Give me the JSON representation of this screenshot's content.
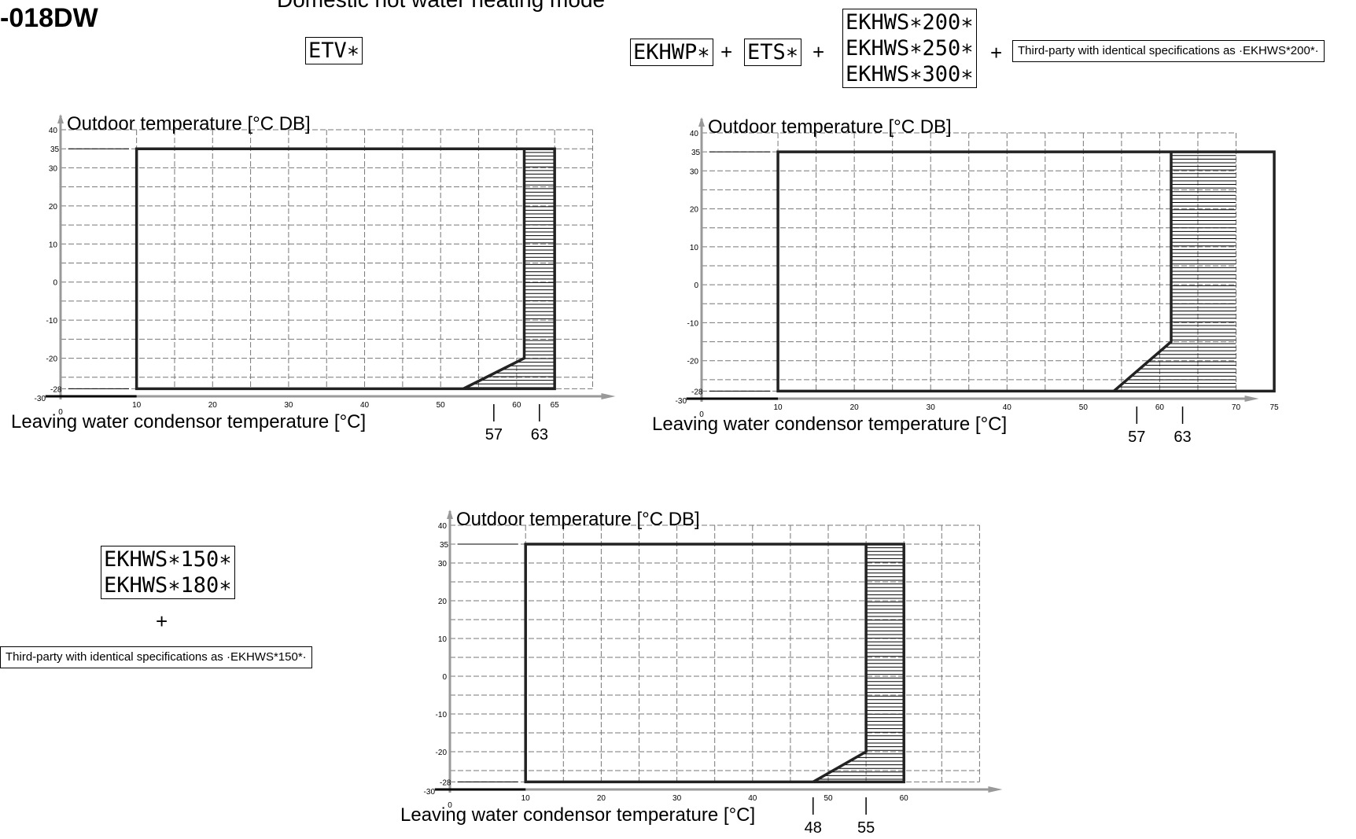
{
  "header": {
    "model_code": "-018DW",
    "mode_title": "Domestic hot water heating mode"
  },
  "options": {
    "etv_label": "ETV∗",
    "ekhwp_label": "EKHWP∗",
    "ets_label": "ETS∗",
    "ekhws_large": [
      "EKHWS∗200∗",
      "EKHWS∗250∗",
      "EKHWS∗300∗"
    ],
    "ekhws_small": [
      "EKHWS∗150∗",
      "EKHWS∗180∗"
    ],
    "plus": "+",
    "third_party_200": "Third-party with identical specifications as ·EKHWS*200*·",
    "third_party_150": "Third-party with identical specifications as ·EKHWS*150*·"
  },
  "chart_data": [
    {
      "type": "area",
      "ylabel": "Outdoor temperature [°C DB]",
      "xlabel": "Leaving water condensor temperature [°C]",
      "xlim": [
        0,
        70
      ],
      "ylim": [
        -30,
        40
      ],
      "x_ticks": [
        0,
        10,
        20,
        30,
        40,
        50,
        60,
        65
      ],
      "y_ticks": [
        40,
        35,
        30,
        20,
        10,
        0,
        -10,
        -20,
        -28,
        -30
      ],
      "x_markers": [
        57,
        63
      ],
      "grid": true,
      "envelope": [
        [
          10,
          -28
        ],
        [
          10,
          35
        ],
        [
          65,
          35
        ],
        [
          65,
          -28
        ],
        [
          53,
          -28
        ],
        [
          61,
          -20
        ],
        [
          61,
          35
        ]
      ],
      "outline": [
        [
          10,
          -28
        ],
        [
          10,
          35
        ],
        [
          65,
          35
        ],
        [
          65,
          -28
        ],
        [
          10,
          -28
        ]
      ],
      "hatched": [
        [
          61,
          35
        ],
        [
          65,
          35
        ],
        [
          65,
          -28
        ],
        [
          53,
          -28
        ],
        [
          61,
          -20
        ]
      ]
    },
    {
      "type": "area",
      "ylabel": "Outdoor temperature [°C DB]",
      "xlabel": "Leaving water condensor temperature [°C]",
      "xlim": [
        0,
        70
      ],
      "ylim": [
        -30,
        40
      ],
      "x_ticks": [
        0,
        10,
        20,
        30,
        40,
        50,
        60,
        70,
        75
      ],
      "y_ticks": [
        40,
        35,
        30,
        20,
        10,
        0,
        -10,
        -20,
        -28,
        -30
      ],
      "x_markers": [
        57,
        63
      ],
      "grid": true,
      "outline": [
        [
          10,
          -28
        ],
        [
          10,
          35
        ],
        [
          75,
          35
        ],
        [
          75,
          -28
        ],
        [
          10,
          -28
        ]
      ],
      "hatched": [
        [
          61.5,
          35
        ],
        [
          75,
          35
        ],
        [
          75,
          -28
        ],
        [
          54,
          -28
        ],
        [
          61.5,
          -15
        ]
      ]
    },
    {
      "type": "area",
      "ylabel": "Outdoor temperature [°C DB]",
      "xlabel": "Leaving water condensor temperature [°C]",
      "xlim": [
        0,
        70
      ],
      "ylim": [
        -30,
        40
      ],
      "x_ticks": [
        0,
        10,
        20,
        30,
        40,
        50,
        60
      ],
      "y_ticks": [
        40,
        35,
        30,
        20,
        10,
        0,
        -10,
        -20,
        -28,
        -30
      ],
      "x_markers": [
        48,
        55
      ],
      "grid": true,
      "outline": [
        [
          10,
          -28
        ],
        [
          10,
          35
        ],
        [
          60,
          35
        ],
        [
          60,
          -28
        ],
        [
          10,
          -28
        ]
      ],
      "hatched": [
        [
          55,
          35
        ],
        [
          60,
          35
        ],
        [
          60,
          -28
        ],
        [
          48,
          -28
        ],
        [
          55,
          -20
        ]
      ]
    }
  ]
}
